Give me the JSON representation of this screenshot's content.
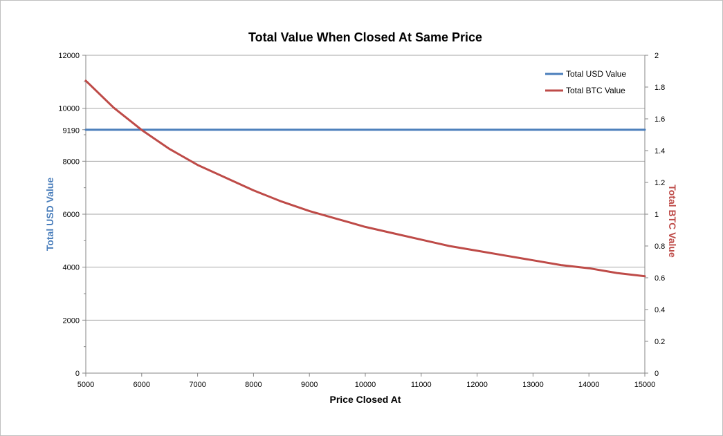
{
  "chart_data": {
    "type": "line",
    "title": "Total Value When Closed At Same Price",
    "xlabel": "Price Closed At",
    "ylabel": "Total USD Value",
    "ylabel_right": "Total BTC Value",
    "xlim": [
      5000,
      15000
    ],
    "ylim": [
      0,
      12000
    ],
    "ylim_right": [
      0,
      2
    ],
    "x_ticks": [
      "5000",
      "6000",
      "7000",
      "8000",
      "9000",
      "10000",
      "11000",
      "12000",
      "13000",
      "14000",
      "15000"
    ],
    "y_ticks": [
      "0",
      "2000",
      "4000",
      "6000",
      "8000",
      "10000",
      "12000"
    ],
    "y_tick_special": "9190",
    "y_ticks_right": [
      "0",
      "0.2",
      "0.4",
      "0.6",
      "0.8",
      "1",
      "1.2",
      "1.4",
      "1.6",
      "1.8",
      "2"
    ],
    "grid": true,
    "legend_position": "top-right",
    "x": [
      5000,
      5500,
      6000,
      6500,
      7000,
      7500,
      8000,
      8500,
      9000,
      9500,
      10000,
      10500,
      11000,
      11500,
      12000,
      12500,
      13000,
      13500,
      14000,
      14500,
      15000
    ],
    "series": [
      {
        "name": "Total USD Value",
        "axis": "left",
        "color": "#4a7ebb",
        "values": [
          9190,
          9190,
          9190,
          9190,
          9190,
          9190,
          9190,
          9190,
          9190,
          9190,
          9190,
          9190,
          9190,
          9190,
          9190,
          9190,
          9190,
          9190,
          9190,
          9190,
          9190
        ]
      },
      {
        "name": "Total BTC Value",
        "axis": "right",
        "color": "#be4b48",
        "values": [
          1.84,
          1.67,
          1.53,
          1.41,
          1.31,
          1.23,
          1.15,
          1.08,
          1.02,
          0.97,
          0.92,
          0.88,
          0.84,
          0.8,
          0.77,
          0.74,
          0.71,
          0.68,
          0.66,
          0.63,
          0.61
        ]
      }
    ],
    "colors": {
      "usd_label": "#4a7ebb",
      "btc_label": "#be4b48",
      "grid": "#a6a6a6",
      "axis": "#868686"
    }
  }
}
